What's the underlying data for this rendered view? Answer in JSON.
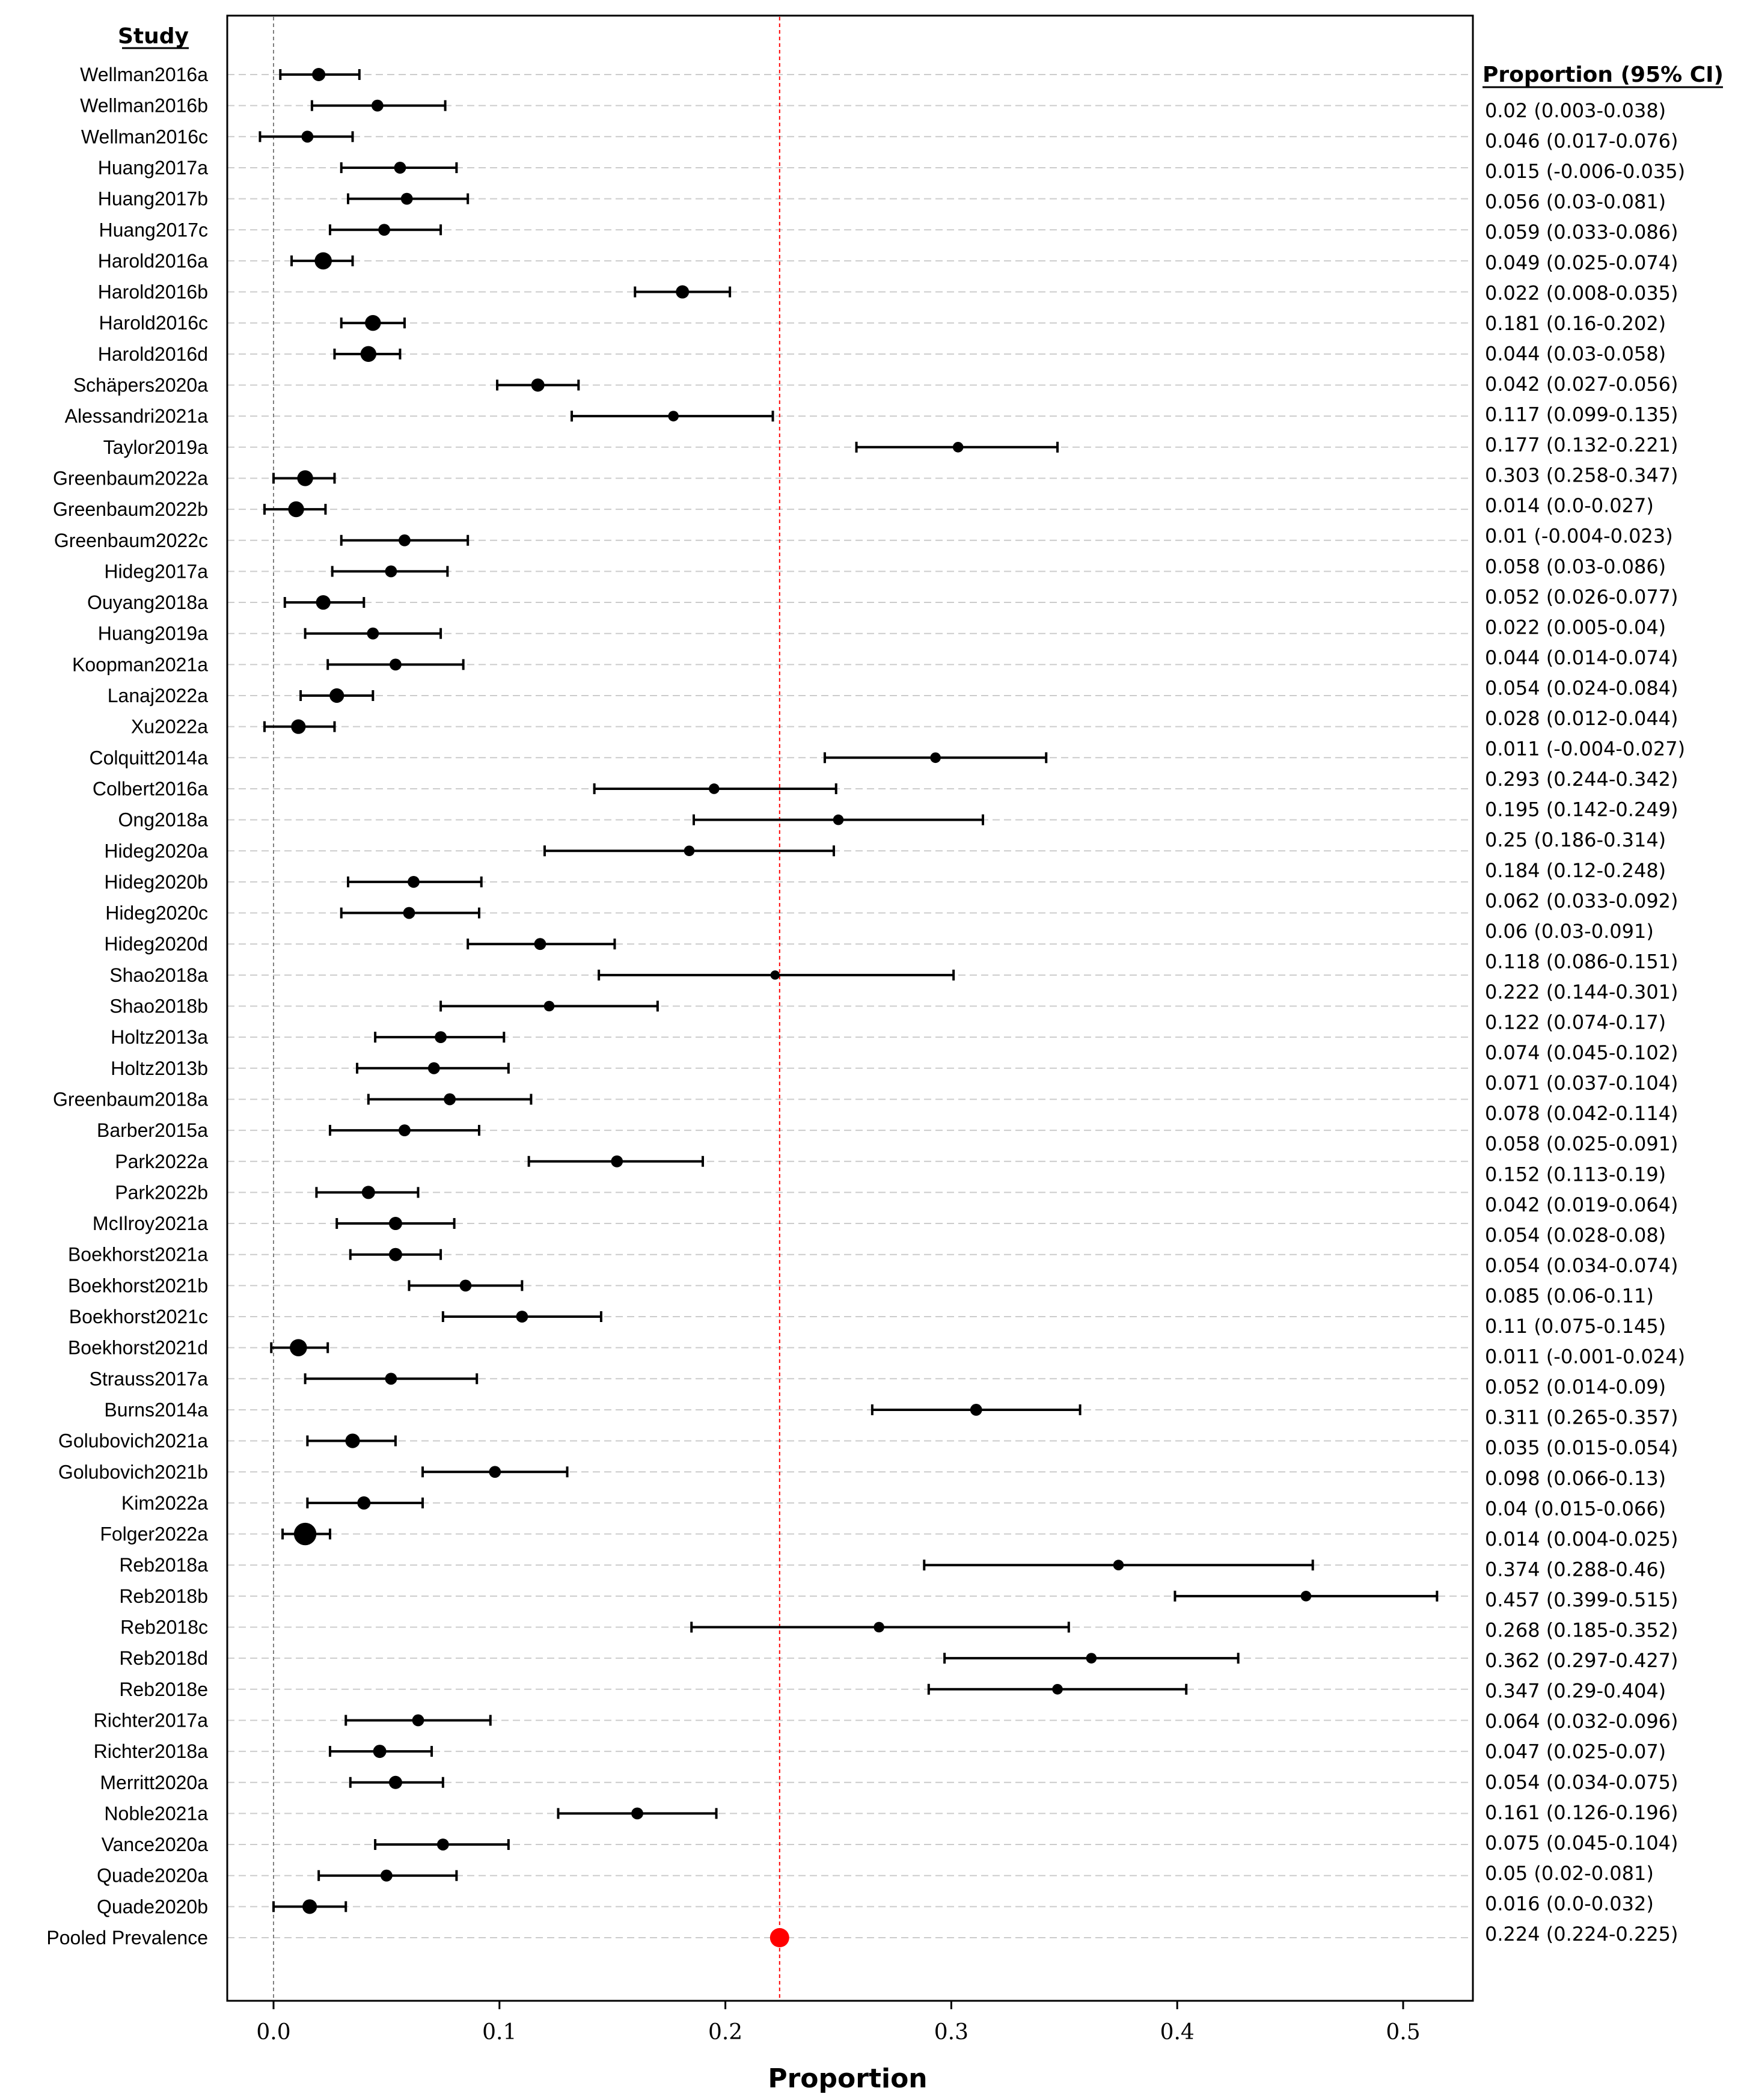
{
  "chart_data": {
    "type": "forest",
    "xlabel": "Proportion",
    "study_header": "Study",
    "ci_header": "Proportion (95% CI)",
    "xlim": [
      -0.02,
      0.532
    ],
    "xticks": [
      0.0,
      0.1,
      0.2,
      0.3,
      0.4,
      0.5
    ],
    "xtick_labels": [
      "0.0",
      "0.1",
      "0.2",
      "0.3",
      "0.4",
      "0.5"
    ],
    "zero_line": 0.0,
    "pooled_line": 0.224,
    "colors": {
      "study": "#000000",
      "pooled": "#ff0000",
      "grid": "#cccccc",
      "zero_line": "#808080"
    },
    "studies": [
      {
        "name": "Wellman2016a",
        "p": 0.02,
        "lo": 0.003,
        "hi": 0.038,
        "size": 1.0
      },
      {
        "name": "Wellman2016b",
        "p": 0.046,
        "lo": 0.017,
        "hi": 0.076,
        "size": 0.9
      },
      {
        "name": "Wellman2016c",
        "p": 0.015,
        "lo": -0.006,
        "hi": 0.035,
        "size": 0.9
      },
      {
        "name": "Huang2017a",
        "p": 0.056,
        "lo": 0.03,
        "hi": 0.081,
        "size": 0.9
      },
      {
        "name": "Huang2017b",
        "p": 0.059,
        "lo": 0.033,
        "hi": 0.086,
        "size": 0.9
      },
      {
        "name": "Huang2017c",
        "p": 0.049,
        "lo": 0.025,
        "hi": 0.074,
        "size": 0.9
      },
      {
        "name": "Harold2016a",
        "p": 0.022,
        "lo": 0.008,
        "hi": 0.035,
        "size": 1.3
      },
      {
        "name": "Harold2016b",
        "p": 0.181,
        "lo": 0.16,
        "hi": 0.202,
        "size": 1.0
      },
      {
        "name": "Harold2016c",
        "p": 0.044,
        "lo": 0.03,
        "hi": 0.058,
        "size": 1.2
      },
      {
        "name": "Harold2016d",
        "p": 0.042,
        "lo": 0.027,
        "hi": 0.056,
        "size": 1.2
      },
      {
        "name": "Schäpers2020a",
        "p": 0.117,
        "lo": 0.099,
        "hi": 0.135,
        "size": 1.0
      },
      {
        "name": "Alessandri2021a",
        "p": 0.177,
        "lo": 0.132,
        "hi": 0.221,
        "size": 0.8
      },
      {
        "name": "Taylor2019a",
        "p": 0.303,
        "lo": 0.258,
        "hi": 0.347,
        "size": 0.8
      },
      {
        "name": "Greenbaum2022a",
        "p": 0.014,
        "lo": 0.0,
        "hi": 0.027,
        "size": 1.2
      },
      {
        "name": "Greenbaum2022b",
        "p": 0.01,
        "lo": -0.004,
        "hi": 0.023,
        "size": 1.2
      },
      {
        "name": "Greenbaum2022c",
        "p": 0.058,
        "lo": 0.03,
        "hi": 0.086,
        "size": 0.9
      },
      {
        "name": "Hideg2017a",
        "p": 0.052,
        "lo": 0.026,
        "hi": 0.077,
        "size": 0.9
      },
      {
        "name": "Ouyang2018a",
        "p": 0.022,
        "lo": 0.005,
        "hi": 0.04,
        "size": 1.1
      },
      {
        "name": "Huang2019a",
        "p": 0.044,
        "lo": 0.014,
        "hi": 0.074,
        "size": 0.9
      },
      {
        "name": "Koopman2021a",
        "p": 0.054,
        "lo": 0.024,
        "hi": 0.084,
        "size": 0.9
      },
      {
        "name": "Lanaj2022a",
        "p": 0.028,
        "lo": 0.012,
        "hi": 0.044,
        "size": 1.1
      },
      {
        "name": "Xu2022a",
        "p": 0.011,
        "lo": -0.004,
        "hi": 0.027,
        "size": 1.1
      },
      {
        "name": "Colquitt2014a",
        "p": 0.293,
        "lo": 0.244,
        "hi": 0.342,
        "size": 0.8
      },
      {
        "name": "Colbert2016a",
        "p": 0.195,
        "lo": 0.142,
        "hi": 0.249,
        "size": 0.8
      },
      {
        "name": "Ong2018a",
        "p": 0.25,
        "lo": 0.186,
        "hi": 0.314,
        "size": 0.8
      },
      {
        "name": "Hideg2020a",
        "p": 0.184,
        "lo": 0.12,
        "hi": 0.248,
        "size": 0.8
      },
      {
        "name": "Hideg2020b",
        "p": 0.062,
        "lo": 0.033,
        "hi": 0.092,
        "size": 0.9
      },
      {
        "name": "Hideg2020c",
        "p": 0.06,
        "lo": 0.03,
        "hi": 0.091,
        "size": 0.9
      },
      {
        "name": "Hideg2020d",
        "p": 0.118,
        "lo": 0.086,
        "hi": 0.151,
        "size": 0.9
      },
      {
        "name": "Shao2018a",
        "p": 0.222,
        "lo": 0.144,
        "hi": 0.301,
        "size": 0.7
      },
      {
        "name": "Shao2018b",
        "p": 0.122,
        "lo": 0.074,
        "hi": 0.17,
        "size": 0.8
      },
      {
        "name": "Holtz2013a",
        "p": 0.074,
        "lo": 0.045,
        "hi": 0.102,
        "size": 0.9
      },
      {
        "name": "Holtz2013b",
        "p": 0.071,
        "lo": 0.037,
        "hi": 0.104,
        "size": 0.9
      },
      {
        "name": "Greenbaum2018a",
        "p": 0.078,
        "lo": 0.042,
        "hi": 0.114,
        "size": 0.9
      },
      {
        "name": "Barber2015a",
        "p": 0.058,
        "lo": 0.025,
        "hi": 0.091,
        "size": 0.9
      },
      {
        "name": "Park2022a",
        "p": 0.152,
        "lo": 0.113,
        "hi": 0.19,
        "size": 0.9
      },
      {
        "name": "Park2022b",
        "p": 0.042,
        "lo": 0.019,
        "hi": 0.064,
        "size": 1.0
      },
      {
        "name": "McIlroy2021a",
        "p": 0.054,
        "lo": 0.028,
        "hi": 0.08,
        "size": 1.0
      },
      {
        "name": "Boekhorst2021a",
        "p": 0.054,
        "lo": 0.034,
        "hi": 0.074,
        "size": 1.0
      },
      {
        "name": "Boekhorst2021b",
        "p": 0.085,
        "lo": 0.06,
        "hi": 0.11,
        "size": 0.9
      },
      {
        "name": "Boekhorst2021c",
        "p": 0.11,
        "lo": 0.075,
        "hi": 0.145,
        "size": 0.9
      },
      {
        "name": "Boekhorst2021d",
        "p": 0.011,
        "lo": -0.001,
        "hi": 0.024,
        "size": 1.3
      },
      {
        "name": "Strauss2017a",
        "p": 0.052,
        "lo": 0.014,
        "hi": 0.09,
        "size": 0.9
      },
      {
        "name": "Burns2014a",
        "p": 0.311,
        "lo": 0.265,
        "hi": 0.357,
        "size": 0.9
      },
      {
        "name": "Golubovich2021a",
        "p": 0.035,
        "lo": 0.015,
        "hi": 0.054,
        "size": 1.1
      },
      {
        "name": "Golubovich2021b",
        "p": 0.098,
        "lo": 0.066,
        "hi": 0.13,
        "size": 0.9
      },
      {
        "name": "Kim2022a",
        "p": 0.04,
        "lo": 0.015,
        "hi": 0.066,
        "size": 1.0
      },
      {
        "name": "Folger2022a",
        "p": 0.014,
        "lo": 0.004,
        "hi": 0.025,
        "size": 1.7
      },
      {
        "name": "Reb2018a",
        "p": 0.374,
        "lo": 0.288,
        "hi": 0.46,
        "size": 0.8
      },
      {
        "name": "Reb2018b",
        "p": 0.457,
        "lo": 0.399,
        "hi": 0.515,
        "size": 0.8
      },
      {
        "name": "Reb2018c",
        "p": 0.268,
        "lo": 0.185,
        "hi": 0.352,
        "size": 0.8
      },
      {
        "name": "Reb2018d",
        "p": 0.362,
        "lo": 0.297,
        "hi": 0.427,
        "size": 0.8
      },
      {
        "name": "Reb2018e",
        "p": 0.347,
        "lo": 0.29,
        "hi": 0.404,
        "size": 0.8
      },
      {
        "name": "Richter2017a",
        "p": 0.064,
        "lo": 0.032,
        "hi": 0.096,
        "size": 0.9
      },
      {
        "name": "Richter2018a",
        "p": 0.047,
        "lo": 0.025,
        "hi": 0.07,
        "size": 1.0
      },
      {
        "name": "Merritt2020a",
        "p": 0.054,
        "lo": 0.034,
        "hi": 0.075,
        "size": 1.0
      },
      {
        "name": "Noble2021a",
        "p": 0.161,
        "lo": 0.126,
        "hi": 0.196,
        "size": 0.9
      },
      {
        "name": "Vance2020a",
        "p": 0.075,
        "lo": 0.045,
        "hi": 0.104,
        "size": 0.9
      },
      {
        "name": "Quade2020a",
        "p": 0.05,
        "lo": 0.02,
        "hi": 0.081,
        "size": 0.9
      },
      {
        "name": "Quade2020b",
        "p": 0.016,
        "lo": 0.0,
        "hi": 0.032,
        "size": 1.1
      }
    ],
    "pooled": {
      "name": "Pooled Prevalence",
      "p": 0.224,
      "lo": 0.224,
      "hi": 0.225
    },
    "ci_labels": [
      "0.02 (0.003-0.038)",
      "0.046 (0.017-0.076)",
      "0.015 (-0.006-0.035)",
      "0.056 (0.03-0.081)",
      "0.059 (0.033-0.086)",
      "0.049 (0.025-0.074)",
      "0.022 (0.008-0.035)",
      "0.181 (0.16-0.202)",
      "0.044 (0.03-0.058)",
      "0.042 (0.027-0.056)",
      "0.117 (0.099-0.135)",
      "0.177 (0.132-0.221)",
      "0.303 (0.258-0.347)",
      "0.014 (0.0-0.027)",
      "0.01 (-0.004-0.023)",
      "0.058 (0.03-0.086)",
      "0.052 (0.026-0.077)",
      "0.022 (0.005-0.04)",
      "0.044 (0.014-0.074)",
      "0.054 (0.024-0.084)",
      "0.028 (0.012-0.044)",
      "0.011 (-0.004-0.027)",
      "0.293 (0.244-0.342)",
      "0.195 (0.142-0.249)",
      "0.25 (0.186-0.314)",
      "0.184 (0.12-0.248)",
      "0.062 (0.033-0.092)",
      "0.06 (0.03-0.091)",
      "0.118 (0.086-0.151)",
      "0.222 (0.144-0.301)",
      "0.122 (0.074-0.17)",
      "0.074 (0.045-0.102)",
      "0.071 (0.037-0.104)",
      "0.078 (0.042-0.114)",
      "0.058 (0.025-0.091)",
      "0.152 (0.113-0.19)",
      "0.042 (0.019-0.064)",
      "0.054 (0.028-0.08)",
      "0.054 (0.034-0.074)",
      "0.085 (0.06-0.11)",
      "0.11 (0.075-0.145)",
      "0.011 (-0.001-0.024)",
      "0.052 (0.014-0.09)",
      "0.311 (0.265-0.357)",
      "0.035 (0.015-0.054)",
      "0.098 (0.066-0.13)",
      "0.04 (0.015-0.066)",
      "0.014 (0.004-0.025)",
      "0.374 (0.288-0.46)",
      "0.457 (0.399-0.515)",
      "0.268 (0.185-0.352)",
      "0.362 (0.297-0.427)",
      "0.347 (0.29-0.404)",
      "0.064 (0.032-0.096)",
      "0.047 (0.025-0.07)",
      "0.054 (0.034-0.075)",
      "0.161 (0.126-0.196)",
      "0.075 (0.045-0.104)",
      "0.05 (0.02-0.081)",
      "0.016 (0.0-0.032)",
      "0.224 (0.224-0.225)"
    ]
  }
}
